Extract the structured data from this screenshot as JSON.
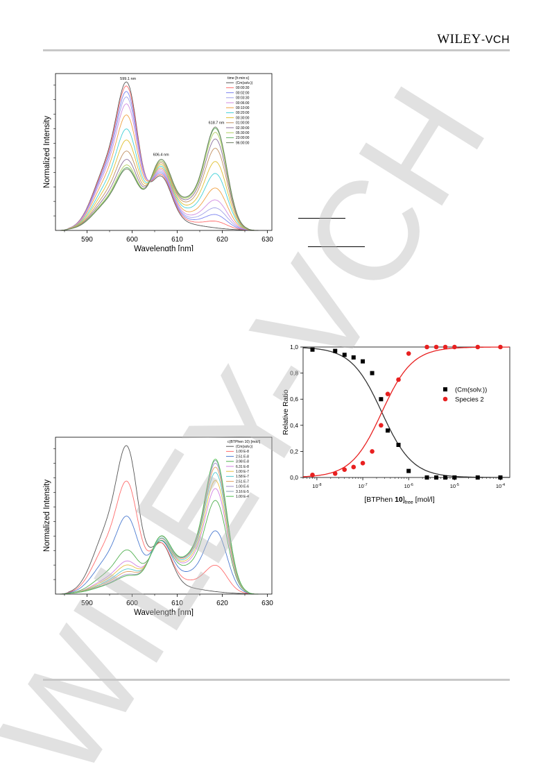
{
  "header": {
    "publisher": "WILEY",
    "publisher_suffix": "-VCH"
  },
  "watermark": {
    "text": "WILEY-VCH",
    "color": "#b8b8b8"
  },
  "chart_data": [
    {
      "type": "line",
      "xlabel": "Wavelength [nm]",
      "ylabel": "Normalized Intensity",
      "xlim": [
        583,
        631
      ],
      "xticks": [
        590,
        600,
        610,
        620,
        630
      ],
      "annotations": [
        "599.1 nm",
        "606.4 nm",
        "618.7 nm"
      ],
      "legend": {
        "title": "time [h:min:s]",
        "position": "top-right",
        "entries": [
          {
            "label": "(Cm(solv.))",
            "color": "#555555"
          },
          {
            "label": "00:00:30",
            "color": "#ff6b6b"
          },
          {
            "label": "00:02:00",
            "color": "#7b83f0"
          },
          {
            "label": "00:03:30",
            "color": "#a0a0e8"
          },
          {
            "label": "00:06:00",
            "color": "#d08be0"
          },
          {
            "label": "00:10:00",
            "color": "#f0a040"
          },
          {
            "label": "00:20:00",
            "color": "#40d0d8"
          },
          {
            "label": "00:30:00",
            "color": "#e0c030"
          },
          {
            "label": "01:00:00",
            "color": "#c09060"
          },
          {
            "label": "02:30:00",
            "color": "#8a6f9a"
          },
          {
            "label": "05:30:00",
            "color": "#b0d060"
          },
          {
            "label": "23:00:00",
            "color": "#60b060"
          },
          {
            "label": "96:00:00",
            "color": "#6b7d60"
          }
        ]
      },
      "series": [
        {
          "name": "(Cm(solv.))",
          "peaks": [
            1.0,
            0.32,
            0.0
          ]
        },
        {
          "name": "00:00:30",
          "peaks": [
            0.97,
            0.33,
            0.05
          ]
        },
        {
          "name": "00:02:00",
          "peaks": [
            0.93,
            0.34,
            0.1
          ]
        },
        {
          "name": "00:03:30",
          "peaks": [
            0.89,
            0.35,
            0.15
          ]
        },
        {
          "name": "00:06:00",
          "peaks": [
            0.84,
            0.36,
            0.21
          ]
        },
        {
          "name": "00:10:00",
          "peaks": [
            0.76,
            0.37,
            0.3
          ]
        },
        {
          "name": "00:20:00",
          "peaks": [
            0.66,
            0.38,
            0.41
          ]
        },
        {
          "name": "00:30:00",
          "peaks": [
            0.58,
            0.39,
            0.5
          ]
        },
        {
          "name": "01:00:00",
          "peaks": [
            0.5,
            0.4,
            0.6
          ]
        },
        {
          "name": "02:30:00",
          "peaks": [
            0.44,
            0.41,
            0.67
          ]
        },
        {
          "name": "05:30:00",
          "peaks": [
            0.4,
            0.41,
            0.72
          ]
        },
        {
          "name": "23:00:00",
          "peaks": [
            0.38,
            0.42,
            0.75
          ]
        },
        {
          "name": "96:00:00",
          "peaks": [
            0.37,
            0.42,
            0.76
          ]
        }
      ]
    },
    {
      "type": "line",
      "xlabel": "Wavelength [nm]",
      "ylabel": "Normalized Intensity",
      "xlim": [
        583,
        631
      ],
      "xticks": [
        590,
        600,
        610,
        620,
        630
      ],
      "legend": {
        "title": "c(BTPhen 10) [mol/l]",
        "position": "top-right",
        "entries": [
          {
            "label": "(Cm(solv.))",
            "color": "#555555"
          },
          {
            "label": "1.00 E-8",
            "color": "#ff6b6b"
          },
          {
            "label": "2.51 E-8",
            "color": "#4a7ad0"
          },
          {
            "label": "3.98 E-8",
            "color": "#50b050"
          },
          {
            "label": "6.31 E-8",
            "color": "#d080e0"
          },
          {
            "label": "1.00 E-7",
            "color": "#e8c040"
          },
          {
            "label": "1.58 E-7",
            "color": "#50c8d0"
          },
          {
            "label": "2.51 E-7",
            "color": "#e0a060"
          },
          {
            "label": "1.00 E-6",
            "color": "#a090c8"
          },
          {
            "label": "3.16 E-5",
            "color": "#8aa0b0"
          },
          {
            "label": "1.00 E-4",
            "color": "#50c050"
          }
        ]
      },
      "series": [
        {
          "name": "(Cm(solv.))",
          "peaks": [
            1.0,
            0.3,
            0.0
          ]
        },
        {
          "name": "1.00 E-8",
          "peaks": [
            0.75,
            0.3,
            0.2
          ]
        },
        {
          "name": "2.51 E-8",
          "peaks": [
            0.5,
            0.31,
            0.46
          ]
        },
        {
          "name": "3.98 E-8",
          "peaks": [
            0.26,
            0.31,
            0.69
          ]
        },
        {
          "name": "6.31 E-8",
          "peaks": [
            0.18,
            0.32,
            0.78
          ]
        },
        {
          "name": "1.00 E-7",
          "peaks": [
            0.15,
            0.32,
            0.84
          ]
        },
        {
          "name": "1.58 E-7",
          "peaks": [
            0.12,
            0.32,
            0.9
          ]
        },
        {
          "name": "2.51 E-7",
          "peaks": [
            0.1,
            0.33,
            0.94
          ]
        },
        {
          "name": "1.00 E-6",
          "peaks": [
            0.08,
            0.33,
            0.97
          ]
        },
        {
          "name": "3.16 E-5",
          "peaks": [
            0.07,
            0.33,
            0.99
          ]
        },
        {
          "name": "1.00 E-4",
          "peaks": [
            0.07,
            0.33,
            1.0
          ]
        }
      ]
    },
    {
      "type": "scatter",
      "xlabel_main": "[BTPhen ",
      "xlabel_bold": "10",
      "xlabel_sub": "free",
      "xlabel_unit": " [mol/l]",
      "ylabel": "Relative Ratio",
      "xscale": "log",
      "xlim": [
        5e-09,
        0.00016
      ],
      "ylim": [
        0,
        1.0
      ],
      "yticks": [
        "0,0",
        "0,2",
        "0,4",
        "0,6",
        "0,8",
        "1,0"
      ],
      "xticks": [
        {
          "base": "10",
          "exp": "-8",
          "value": 1e-08
        },
        {
          "base": "10",
          "exp": "-7",
          "value": 1e-07
        },
        {
          "base": "10",
          "exp": "-6",
          "value": 1e-06
        },
        {
          "base": "10",
          "exp": "-5",
          "value": 1e-05
        },
        {
          "base": "10",
          "exp": "-4",
          "value": 0.0001
        }
      ],
      "legend_position": "right",
      "series": [
        {
          "name": "(Cm(solv.))",
          "marker": "square",
          "color": "#000000",
          "x": [
            8e-09,
            2.5e-08,
            4e-08,
            6.3e-08,
            1e-07,
            1.6e-07,
            2.5e-07,
            3.5e-07,
            6e-07,
            1e-06,
            2.5e-06,
            4e-06,
            6.3e-06,
            1e-05,
            3.2e-05,
            0.0001
          ],
          "y": [
            0.98,
            0.97,
            0.94,
            0.92,
            0.89,
            0.8,
            0.6,
            0.36,
            0.25,
            0.05,
            0.0,
            0.0,
            0.0,
            0.0,
            0.0,
            0.0
          ]
        },
        {
          "name": "Species 2",
          "marker": "circle",
          "color": "#e82020",
          "x": [
            8e-09,
            2.5e-08,
            4e-08,
            6.3e-08,
            1e-07,
            1.6e-07,
            2.5e-07,
            3.5e-07,
            6e-07,
            1e-06,
            2.5e-06,
            4e-06,
            6.3e-06,
            1e-05,
            3.2e-05,
            0.0001
          ],
          "y": [
            0.02,
            0.03,
            0.06,
            0.08,
            0.11,
            0.2,
            0.4,
            0.64,
            0.75,
            0.95,
            1.0,
            1.0,
            1.0,
            1.0,
            1.0,
            1.0
          ]
        }
      ],
      "fits": [
        {
          "name": "(Cm(solv.))",
          "color": "#333333"
        },
        {
          "name": "Species 2",
          "color": "#e82020"
        }
      ]
    }
  ]
}
